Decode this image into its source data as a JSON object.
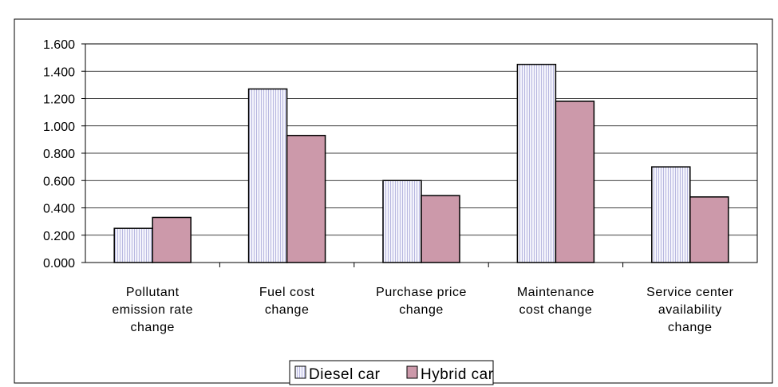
{
  "chart_data": {
    "type": "bar",
    "categories": [
      [
        "Pollutant",
        "emission rate",
        "change"
      ],
      [
        "Fuel cost",
        "change"
      ],
      [
        "Purchase price",
        "change"
      ],
      [
        "Maintenance",
        "cost change"
      ],
      [
        "Service center",
        "availability",
        "change"
      ]
    ],
    "series": [
      {
        "name": "Diesel car",
        "values": [
          0.25,
          1.27,
          0.6,
          1.45,
          0.7
        ],
        "color": "#e6e6f8",
        "pattern": "vertical-lines"
      },
      {
        "name": "Hybrid car",
        "values": [
          0.33,
          0.93,
          0.49,
          1.18,
          0.48
        ],
        "color": "#cc99aa",
        "pattern": "solid"
      }
    ],
    "ylim": [
      0,
      1.6
    ],
    "yticks": [
      "0.000",
      "0.200",
      "0.400",
      "0.600",
      "0.800",
      "1.000",
      "1.200",
      "1.400",
      "1.600"
    ],
    "title": "",
    "xlabel": "",
    "ylabel": "",
    "grid": true,
    "legend_position": "bottom"
  }
}
